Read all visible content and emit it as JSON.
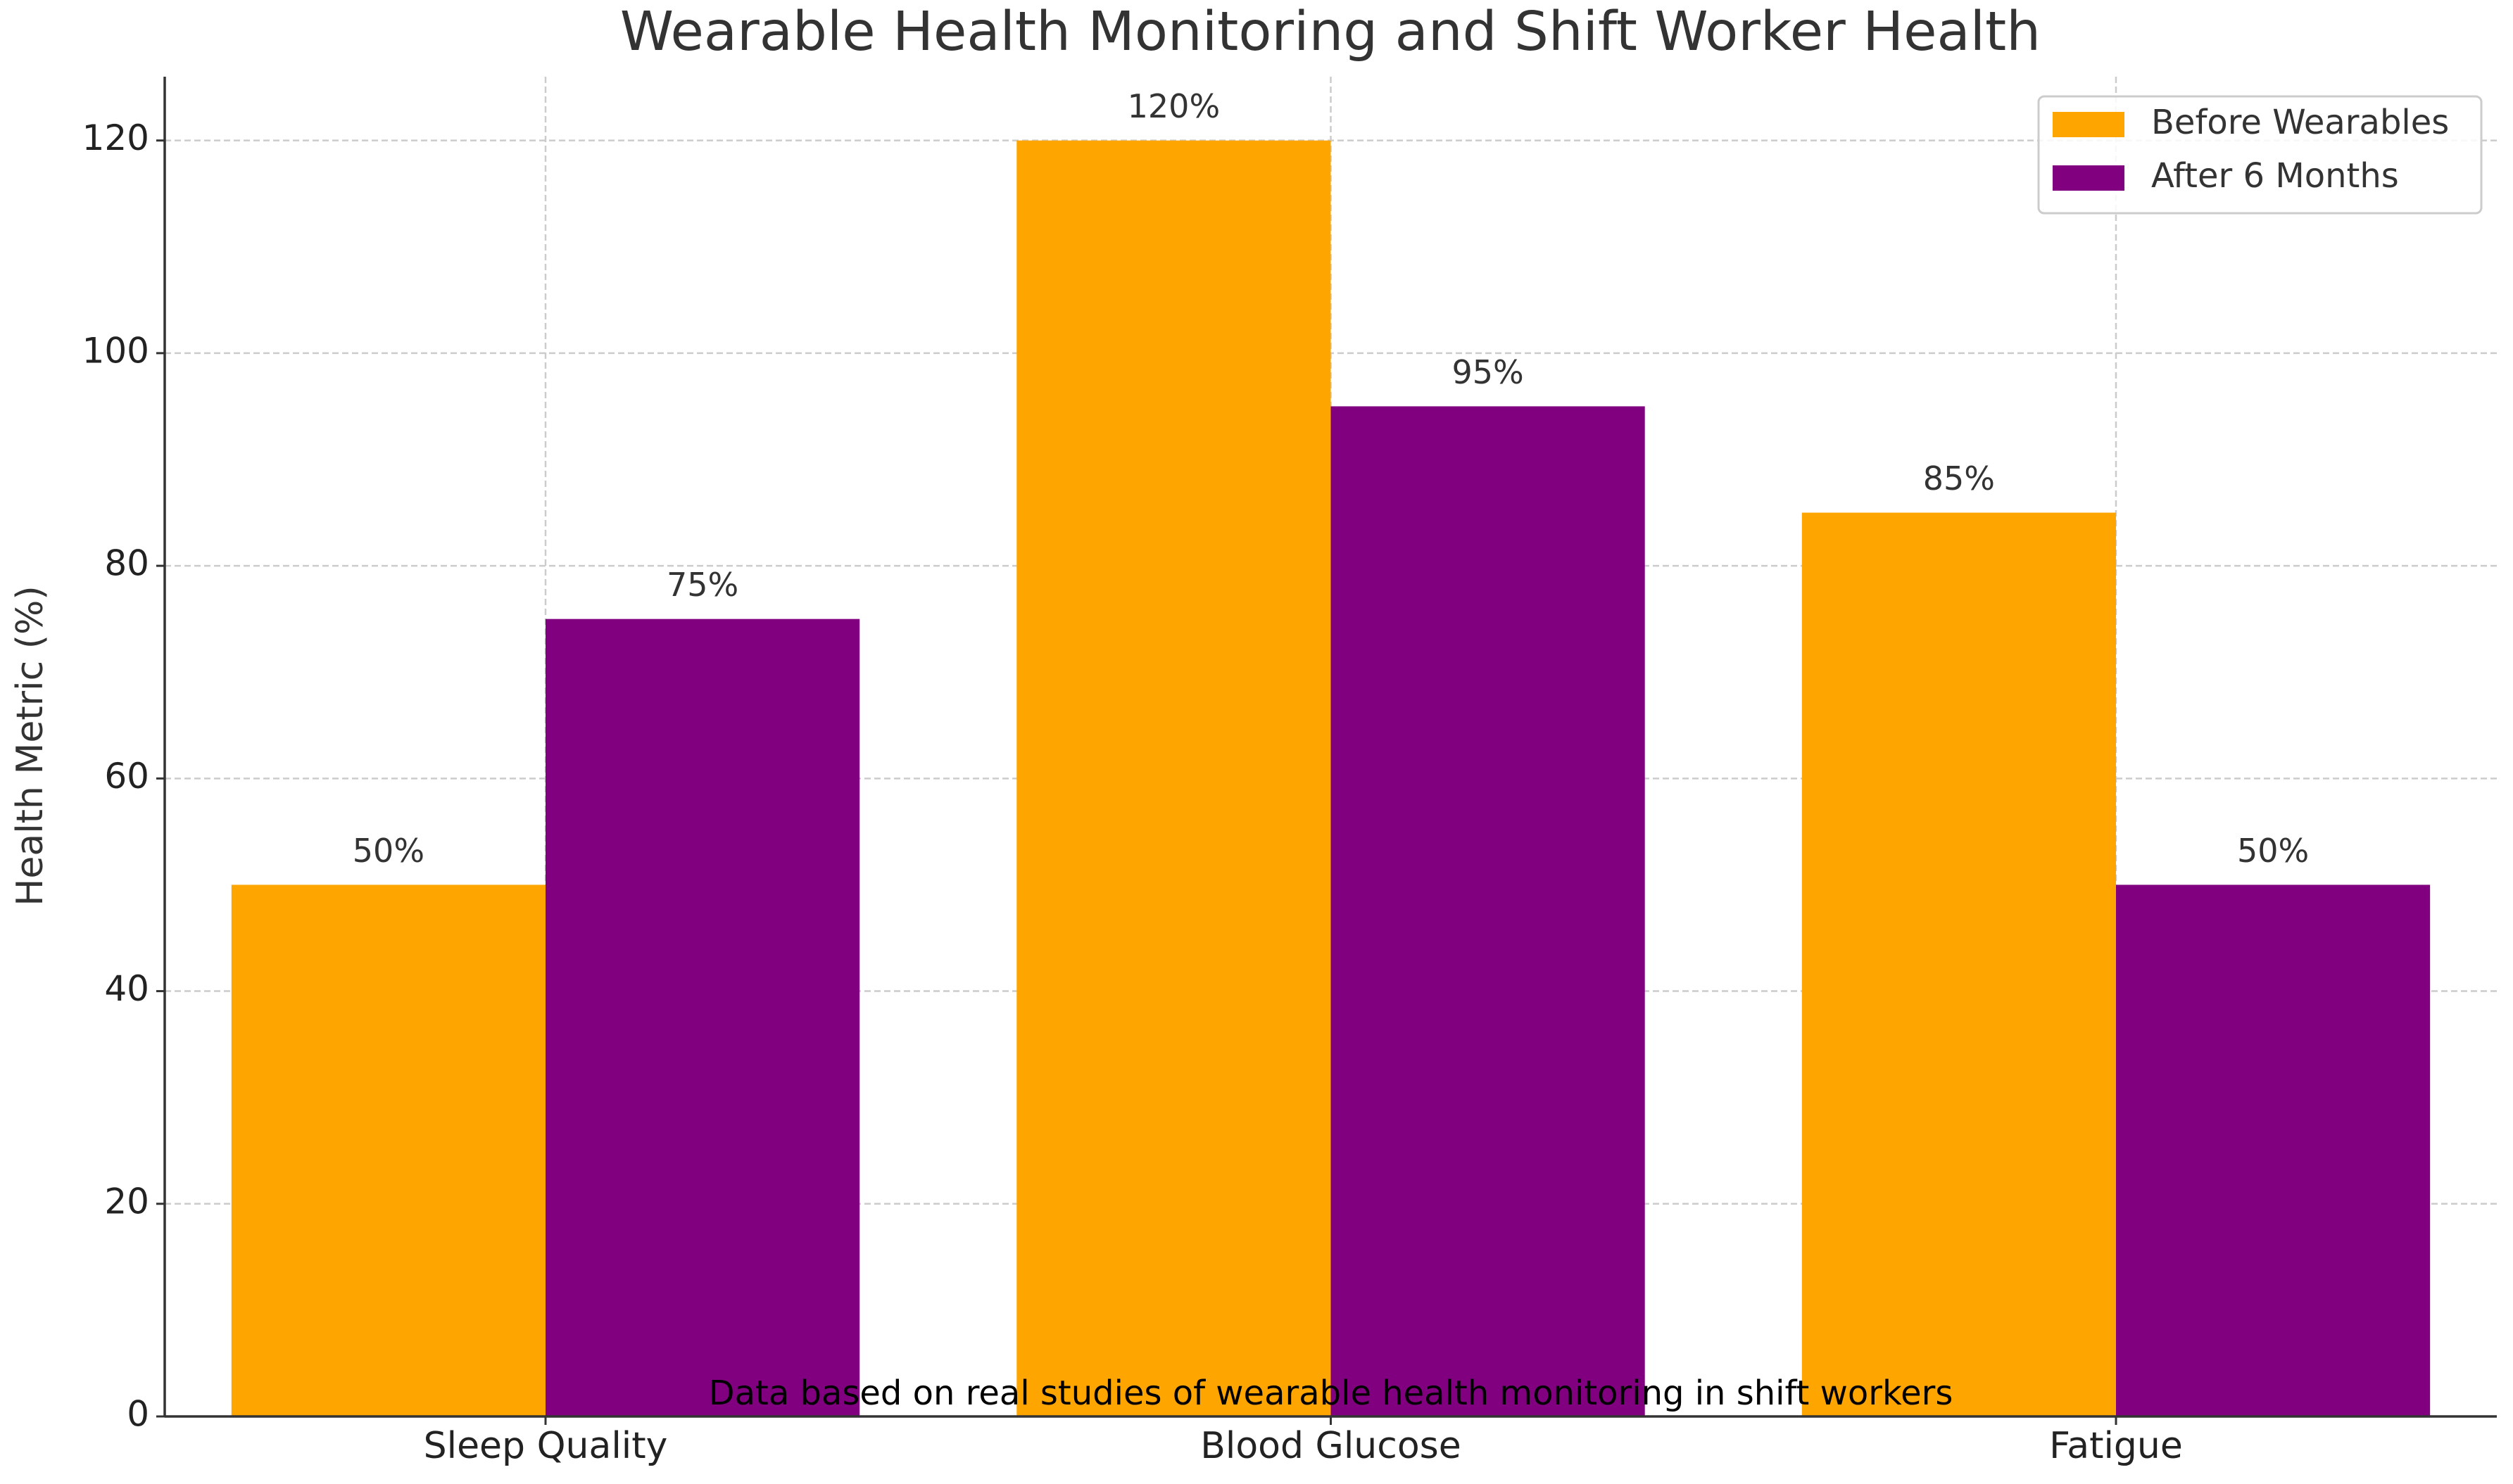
{
  "chart_data": {
    "type": "bar",
    "title": "Wearable Health Monitoring and Shift Worker Health",
    "y_label": "Health Metric (%)",
    "annotation": "Data based on real studies of wearable health monitoring in shift workers",
    "categories": [
      "Sleep Quality",
      "Blood Glucose",
      "Fatigue"
    ],
    "series": [
      {
        "name": "Before Wearables",
        "color": "#ffa500",
        "values": [
          50,
          120,
          85
        ],
        "value_labels": [
          "50%",
          "120%",
          "85%"
        ]
      },
      {
        "name": "After 6 Months",
        "color": "#800080",
        "values": [
          75,
          95,
          50
        ],
        "value_labels": [
          "75%",
          "95%",
          "50%"
        ]
      }
    ],
    "ylim": [
      0,
      126
    ],
    "yticks": [
      0,
      20,
      40,
      60,
      80,
      100,
      120
    ],
    "grid": true,
    "legend": "upper right"
  }
}
